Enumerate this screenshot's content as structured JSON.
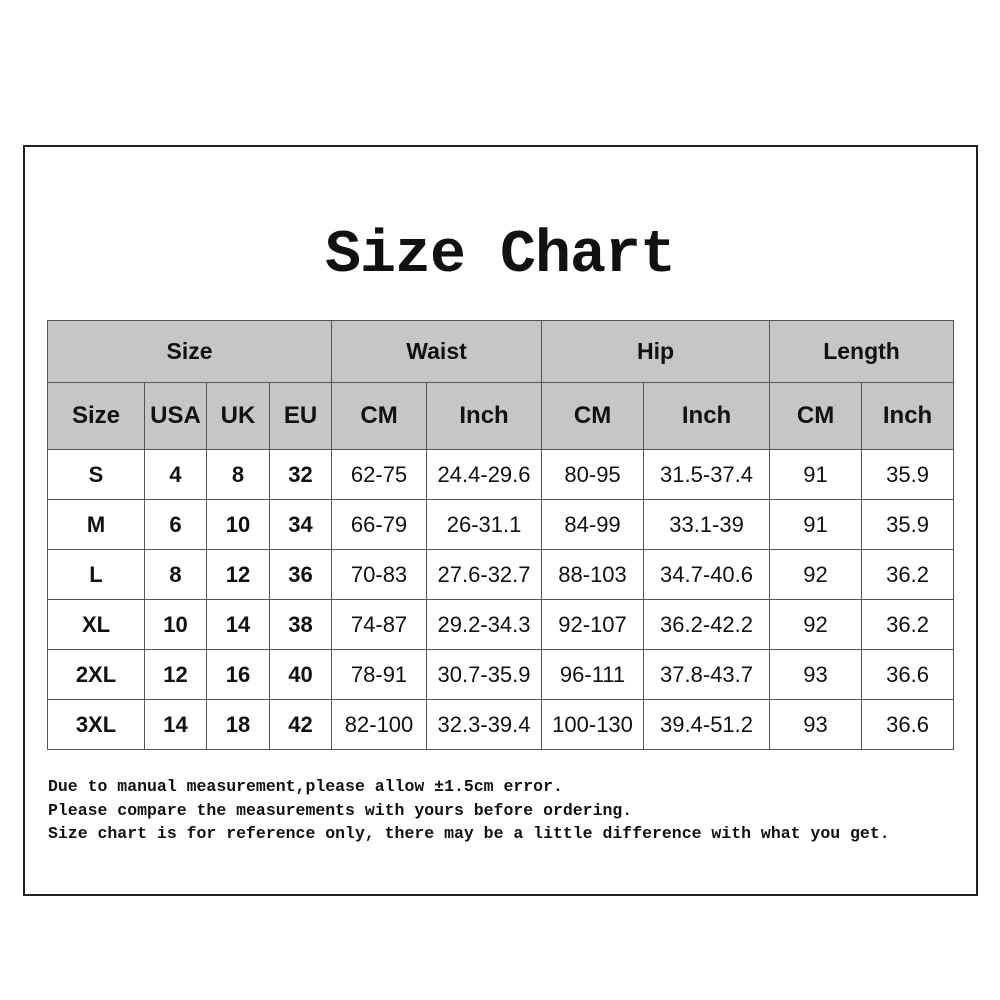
{
  "title": "Size Chart",
  "group_headers": [
    "Size",
    "Waist",
    "Hip",
    "Length"
  ],
  "sub_headers": [
    "Size",
    "USA",
    "UK",
    "EU",
    "CM",
    "Inch",
    "CM",
    "Inch",
    "CM",
    "Inch"
  ],
  "rows": [
    [
      "S",
      "4",
      "8",
      "32",
      "62-75",
      "24.4-29.6",
      "80-95",
      "31.5-37.4",
      "91",
      "35.9"
    ],
    [
      "M",
      "6",
      "10",
      "34",
      "66-79",
      "26-31.1",
      "84-99",
      "33.1-39",
      "91",
      "35.9"
    ],
    [
      "L",
      "8",
      "12",
      "36",
      "70-83",
      "27.6-32.7",
      "88-103",
      "34.7-40.6",
      "92",
      "36.2"
    ],
    [
      "XL",
      "10",
      "14",
      "38",
      "74-87",
      "29.2-34.3",
      "92-107",
      "36.2-42.2",
      "92",
      "36.2"
    ],
    [
      "2XL",
      "12",
      "16",
      "40",
      "78-91",
      "30.7-35.9",
      "96-111",
      "37.8-43.7",
      "93",
      "36.6"
    ],
    [
      "3XL",
      "14",
      "18",
      "42",
      "82-100",
      "32.3-39.4",
      "100-130",
      "39.4-51.2",
      "93",
      "36.6"
    ]
  ],
  "notes": [
    "Due to manual measurement,please allow ±1.5cm error.",
    "Please compare the measurements with yours before ordering.",
    "Size chart is for reference only, there may be a little difference with what you get."
  ],
  "colors": {
    "header_bg": "#c6c6c6",
    "border": "#555555"
  }
}
